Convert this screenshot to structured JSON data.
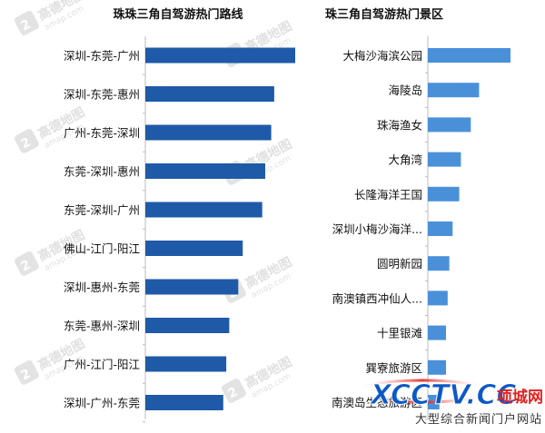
{
  "chart_data": [
    {
      "type": "bar",
      "orientation": "horizontal",
      "title": "珠珠三角自驾游热门路线",
      "categories": [
        "深圳-东莞-广州",
        "深圳-东莞-惠州",
        "广州-东莞-深圳",
        "东莞-深圳-惠州",
        "东莞-深圳-广州",
        "佛山-江门-阳江",
        "深圳-惠州-东莞",
        "东莞-惠州-深圳",
        "广州-江门-阳江",
        "深圳-广州-东莞"
      ],
      "values": [
        100,
        86,
        84,
        80,
        78,
        65,
        62,
        56,
        54,
        52
      ],
      "xlim": [
        0,
        100
      ],
      "grid": false,
      "legend": "none",
      "color": "#1f5aa8"
    },
    {
      "type": "bar",
      "orientation": "horizontal",
      "title": "珠三角自驾游热门景区",
      "categories": [
        "大梅沙海滨公园",
        "海陵岛",
        "珠海渔女",
        "大角湾",
        "长隆海洋王国",
        "深圳小梅沙海洋...",
        "圆明新园",
        "南澳镇西冲仙人...",
        "十里银滩",
        "巽寮旅游区",
        "南澳岛生态旅游区"
      ],
      "values": [
        100,
        62,
        52,
        40,
        38,
        30,
        26,
        24,
        22,
        22,
        14
      ],
      "xlim": [
        0,
        100
      ],
      "grid": false,
      "legend": "none",
      "color": "#4a90d9"
    }
  ],
  "watermark": {
    "chinese_text": "高德地图",
    "latin_text": "amap.com",
    "brand_text": "XCCTV.CC",
    "brand_cn": "项城网",
    "brand_sub": "大型综合新闻门户网站"
  },
  "colors": {
    "left_bar": "#1f5aa8",
    "right_bar": "#4a90d9",
    "axis": "#bbbbbb",
    "brand_blue": "#0b59c6",
    "brand_red": "#e32020"
  },
  "icons": [
    "amap-watermark-icon",
    "xcctv-logo-icon"
  ]
}
